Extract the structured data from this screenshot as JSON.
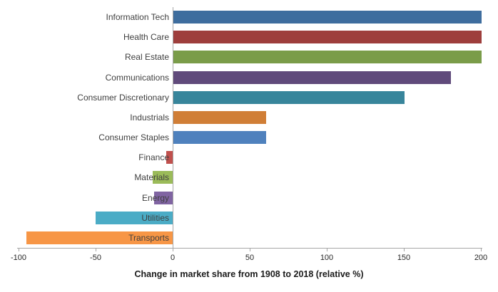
{
  "chart_data": {
    "type": "bar",
    "orientation": "horizontal",
    "title": "",
    "xlabel": "Change in market share from 1908 to 2018 (relative %)",
    "ylabel": "",
    "xlim": [
      -100,
      200
    ],
    "xticks": [
      -100,
      -50,
      0,
      50,
      100,
      150,
      200
    ],
    "grid": false,
    "legend": false,
    "categories": [
      "Information Tech",
      "Health Care",
      "Real Estate",
      "Communications",
      "Consumer Discretionary",
      "Industrials",
      "Consumer Staples",
      "Finance",
      "Materials",
      "Energy",
      "Utilities",
      "Transports"
    ],
    "values": [
      200,
      200,
      200,
      180,
      150,
      60,
      60,
      -4,
      -13,
      -12,
      -50,
      -95
    ],
    "bar_colors": [
      "#3e6d9e",
      "#9e3e3c",
      "#7a9c49",
      "#604a7b",
      "#38859b",
      "#d07e36",
      "#4f81bd",
      "#c0504d",
      "#9bbb59",
      "#8064a2",
      "#4bacc6",
      "#f79646"
    ],
    "colors": {
      "axis_line": "#a6a6a6",
      "tick_label": "#262626",
      "category_label": "#3f3f3f",
      "axis_title": "#1a1a1a",
      "background": "#ffffff"
    }
  }
}
